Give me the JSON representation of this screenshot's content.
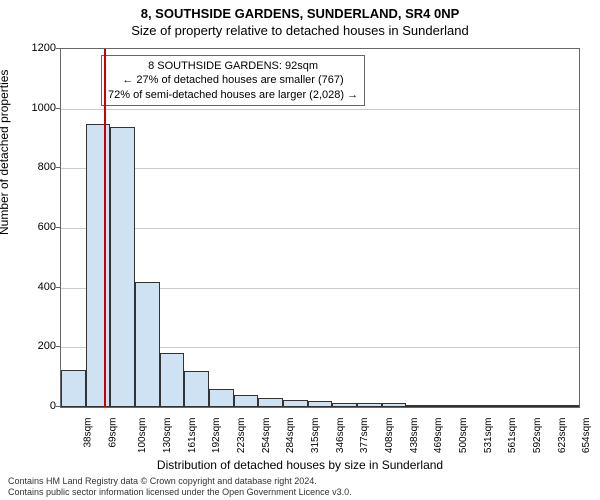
{
  "title": {
    "line1": "8, SOUTHSIDE GARDENS, SUNDERLAND, SR4 0NP",
    "line2": "Size of property relative to detached houses in Sunderland"
  },
  "ylabel": "Number of detached properties",
  "xlabel": "Distribution of detached houses by size in Sunderland",
  "footer": {
    "line1": "Contains HM Land Registry data © Crown copyright and database right 2024.",
    "line2": "Contains public sector information licensed under the Open Government Licence v3.0."
  },
  "annotation": {
    "line1": "8 SOUTHSIDE GARDENS: 92sqm",
    "line2": "← 27% of detached houses are smaller (767)",
    "line3": "72% of semi-detached houses are larger (2,028) →"
  },
  "chart": {
    "type": "histogram",
    "ylim": [
      0,
      1200
    ],
    "yticks": [
      0,
      200,
      400,
      600,
      800,
      1000,
      1200
    ],
    "xtick_labels": [
      "38sqm",
      "69sqm",
      "100sqm",
      "130sqm",
      "161sqm",
      "192sqm",
      "223sqm",
      "254sqm",
      "284sqm",
      "315sqm",
      "346sqm",
      "377sqm",
      "408sqm",
      "438sqm",
      "469sqm",
      "500sqm",
      "531sqm",
      "561sqm",
      "592sqm",
      "623sqm",
      "654sqm"
    ],
    "bar_values": [
      125,
      950,
      940,
      420,
      180,
      120,
      60,
      40,
      30,
      25,
      20,
      15,
      12,
      14,
      8,
      5,
      3,
      2,
      2,
      1,
      1
    ],
    "bar_fill": "#cfe2f3",
    "bar_border": "#333333",
    "marker_value": 92,
    "x_min": 38,
    "x_step": 30.8,
    "marker_color": "#cc0000",
    "grid_color": "#cccccc",
    "background_color": "#ffffff",
    "axis_color": "#666666",
    "title_fontsize": 13,
    "label_fontsize": 12,
    "tick_fontsize": 11
  }
}
